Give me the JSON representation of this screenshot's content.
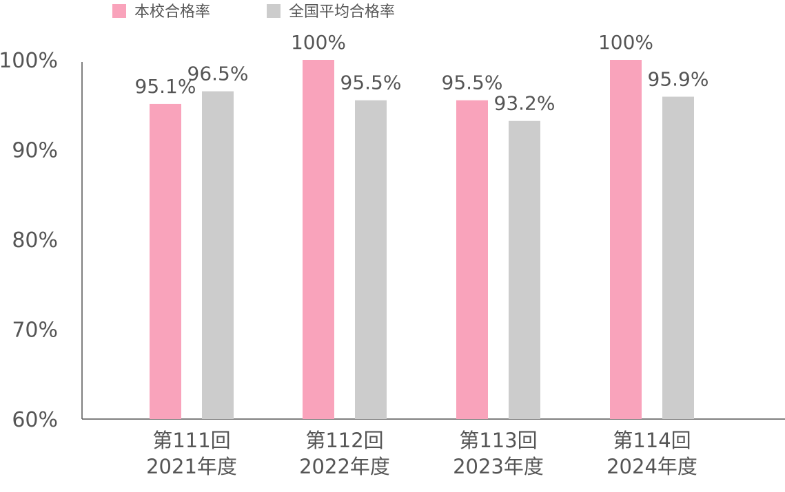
{
  "chart_data": {
    "type": "bar",
    "categories": [
      [
        "第111回",
        "2021年度"
      ],
      [
        "第112回",
        "2022年度"
      ],
      [
        "第113回",
        "2023年度"
      ],
      [
        "第114回",
        "2024年度"
      ]
    ],
    "series": [
      {
        "name": "本校合格率",
        "color": "#f9a3bb",
        "values": [
          95.1,
          100,
          95.5,
          100
        ],
        "labels": [
          "95.1%",
          "100%",
          "95.5%",
          "100%"
        ]
      },
      {
        "name": "全国平均合格率",
        "color": "#cccccc",
        "values": [
          96.5,
          95.5,
          93.2,
          95.9
        ],
        "labels": [
          "96.5%",
          "95.5%",
          "93.2%",
          "95.9%"
        ]
      }
    ],
    "ylim": [
      60,
      100
    ],
    "yticks": [
      60,
      70,
      80,
      90,
      100
    ],
    "ytick_labels": [
      "60%",
      "70%",
      "80%",
      "90%",
      "100%"
    ],
    "legend": "top-left",
    "grid": false,
    "title": "",
    "xlabel": "",
    "ylabel": ""
  }
}
